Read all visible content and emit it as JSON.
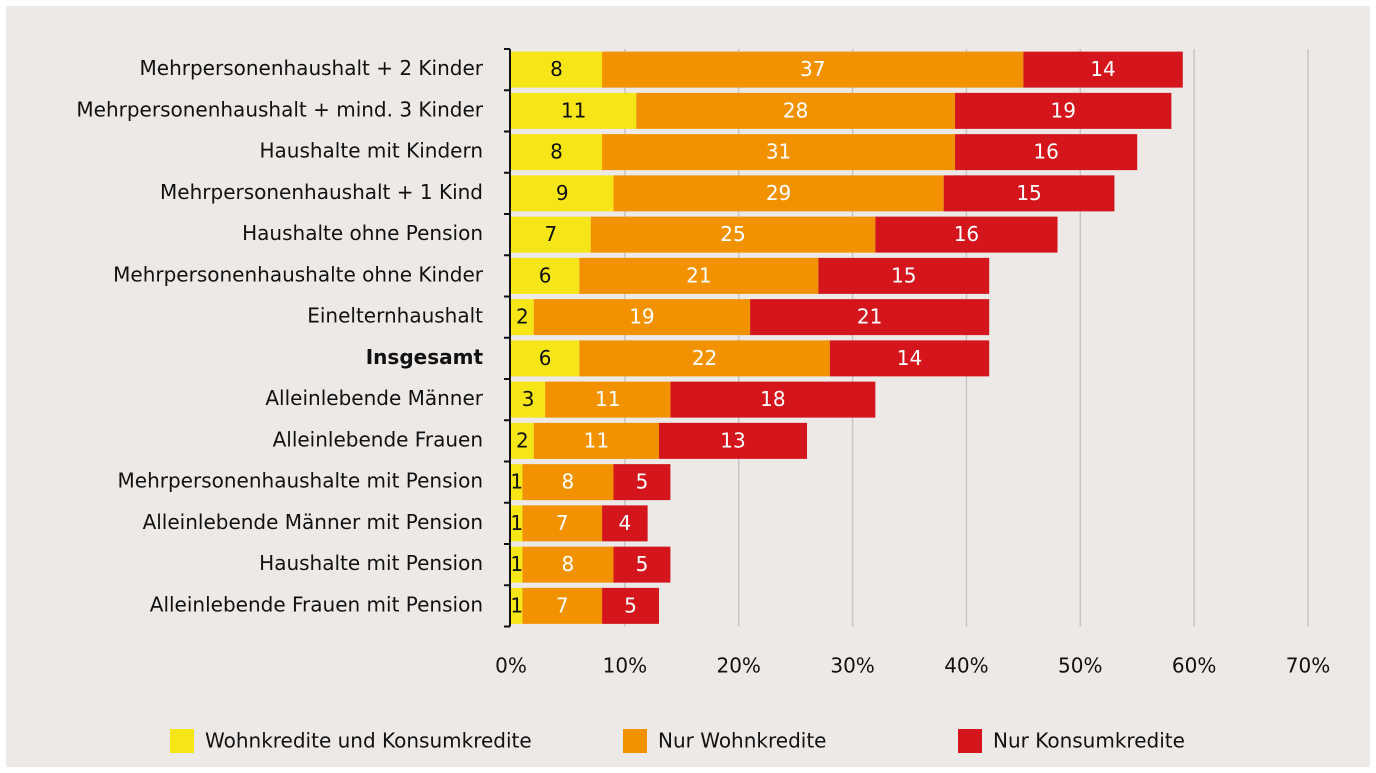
{
  "chart_data": {
    "type": "stacked_barh",
    "categories": [
      "Mehrpersonenhaushalt + 2 Kinder",
      "Mehrpersonenhaushalt + mind. 3 Kinder",
      "Haushalte mit Kindern",
      "Mehrpersonenhaushalt + 1 Kind",
      "Haushalte ohne Pension",
      "Mehrpersonenhaushalte ohne Kinder",
      "Einelternhaushalt",
      "Insgesamt",
      "Alleinlebende Männer",
      "Alleinlebende Frauen",
      "Mehrpersonenhaushalte mit Pension",
      "Alleinlebende Männer mit Pension",
      "Haushalte mit Pension",
      "Alleinlebende Frauen mit Pension"
    ],
    "highlight": 7,
    "series": [
      {
        "name": "Wohnkredite und Konsumkredite",
        "color": "#f7e617",
        "text_color": "#111111",
        "values": [
          8,
          11,
          8,
          9,
          7,
          6,
          2,
          6,
          3,
          2,
          1,
          1,
          1,
          1
        ]
      },
      {
        "name": "Nur Wohnkredite",
        "color": "#f39200",
        "text_color": "#ffffff",
        "values": [
          37,
          28,
          31,
          29,
          25,
          21,
          19,
          22,
          11,
          11,
          8,
          7,
          8,
          7
        ]
      },
      {
        "name": "Nur Konsumkredite",
        "color": "#d4161c",
        "text_color": "#ffffff",
        "values": [
          14,
          19,
          16,
          15,
          16,
          15,
          21,
          14,
          18,
          13,
          5,
          4,
          5,
          5
        ]
      }
    ],
    "xlim": [
      0,
      70
    ],
    "xticks": [
      {
        "value": 0,
        "label": "0%"
      },
      {
        "value": 10,
        "label": "10%"
      },
      {
        "value": 20,
        "label": "20%"
      },
      {
        "value": 30,
        "label": "30%"
      },
      {
        "value": 40,
        "label": "40%"
      },
      {
        "value": 50,
        "label": "50%"
      },
      {
        "value": 60,
        "label": "60%"
      },
      {
        "value": 70,
        "label": "70%"
      }
    ],
    "grid": true,
    "legend": "bottom"
  }
}
